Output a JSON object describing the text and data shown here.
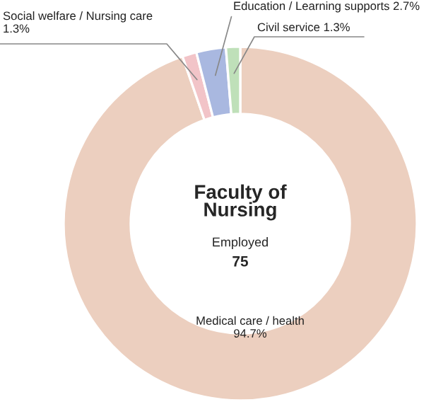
{
  "chart_data": {
    "type": "donut",
    "title": "Faculty of Nursing",
    "subtitle": "Employed",
    "annotations": [
      "75"
    ],
    "categories": [
      "Medical care / health",
      "Social welfare / Nursing care",
      "Education / Learning supports",
      "Civil service"
    ],
    "values": [
      94.7,
      1.3,
      2.7,
      1.3
    ],
    "colors": [
      "#eccfbf",
      "#f2c4c8",
      "#a9b8e0",
      "#bfe0b9"
    ],
    "value_labels": [
      "94.7%",
      "1.3%",
      "2.7%",
      "1.3%"
    ],
    "legend": false
  }
}
